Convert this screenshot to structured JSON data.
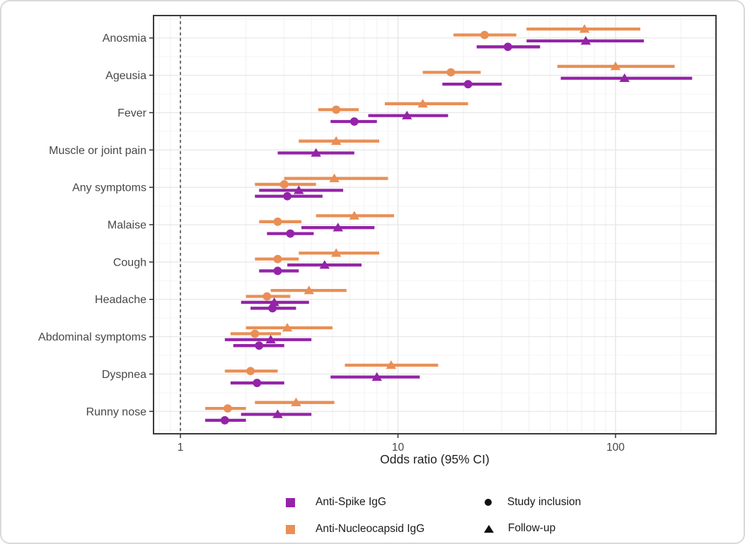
{
  "chart_data": {
    "type": "scatter",
    "subtype": "forest-plot",
    "title": "",
    "xlabel": "Odds ratio (95% CI)",
    "ylabel": "",
    "x_scale": "log10",
    "x_ticks": [
      1,
      10,
      100
    ],
    "xlim": [
      0.75,
      290
    ],
    "reference_line": 1,
    "grid": true,
    "legend_position": "bottom",
    "categories": [
      "Anosmia",
      "Ageusia",
      "Fever",
      "Muscle or joint pain",
      "Any symptoms",
      "Malaise",
      "Cough",
      "Headache",
      "Abdominal symptoms",
      "Dyspnea",
      "Runny nose"
    ],
    "colors": {
      "anti_spike": "#9423A8",
      "anti_nucleocapsid": "#E98F55"
    },
    "series": [
      {
        "name": "Anti-Nucleocapsid IgG / Follow-up",
        "color_key": "anti_nucleocapsid",
        "marker": "triangle",
        "slot": 0,
        "values": [
          [
            72,
            39,
            130
          ],
          [
            100,
            54,
            187
          ],
          [
            13,
            8.7,
            21
          ],
          [
            5.2,
            3.5,
            8.2
          ],
          [
            5.1,
            3.0,
            9.0
          ],
          [
            6.3,
            4.2,
            9.6
          ],
          [
            5.2,
            3.5,
            8.2
          ],
          [
            3.9,
            2.6,
            5.8
          ],
          [
            3.1,
            2.0,
            5.0
          ],
          [
            9.3,
            5.7,
            15.3
          ],
          [
            3.4,
            2.2,
            5.1
          ]
        ]
      },
      {
        "name": "Anti-Nucleocapsid IgG / Study inclusion",
        "color_key": "anti_nucleocapsid",
        "marker": "circle",
        "slot": 1,
        "values": [
          [
            25,
            18,
            35
          ],
          [
            17.5,
            13,
            24
          ],
          [
            5.2,
            4.3,
            6.6
          ],
          null,
          [
            3.0,
            2.2,
            4.2
          ],
          [
            2.8,
            2.3,
            3.6
          ],
          [
            2.8,
            2.2,
            3.5
          ],
          [
            2.5,
            2.0,
            3.2
          ],
          [
            2.2,
            1.7,
            2.9
          ],
          [
            2.1,
            1.6,
            2.8
          ],
          [
            1.65,
            1.3,
            2.0
          ]
        ]
      },
      {
        "name": "Anti-Spike IgG / Follow-up",
        "color_key": "anti_spike",
        "marker": "triangle",
        "slot": 2,
        "values": [
          [
            73,
            39,
            135
          ],
          [
            110,
            56,
            225
          ],
          [
            11,
            7.3,
            17
          ],
          [
            4.2,
            2.8,
            6.3
          ],
          [
            3.5,
            2.3,
            5.6
          ],
          [
            5.3,
            3.6,
            7.8
          ],
          [
            4.6,
            3.1,
            6.8
          ],
          [
            2.7,
            1.9,
            3.9
          ],
          [
            2.6,
            1.6,
            4.0
          ],
          [
            8.0,
            4.9,
            12.6
          ],
          [
            2.8,
            1.9,
            4.0
          ]
        ]
      },
      {
        "name": "Anti-Spike IgG / Study inclusion",
        "color_key": "anti_spike",
        "marker": "circle",
        "slot": 3,
        "values": [
          [
            32,
            23,
            45
          ],
          [
            21,
            16,
            30
          ],
          [
            6.3,
            4.9,
            8.0
          ],
          null,
          [
            3.1,
            2.2,
            4.5
          ],
          [
            3.2,
            2.5,
            4.1
          ],
          [
            2.8,
            2.3,
            3.5
          ],
          [
            2.65,
            2.1,
            3.4
          ],
          [
            2.3,
            1.75,
            3.0
          ],
          [
            2.25,
            1.7,
            3.0
          ],
          [
            1.6,
            1.3,
            2.0
          ]
        ]
      }
    ],
    "legend": {
      "color_items": [
        {
          "label": "Anti-Spike IgG",
          "color_key": "anti_spike"
        },
        {
          "label": "Anti-Nucleocapsid IgG",
          "color_key": "anti_nucleocapsid"
        }
      ],
      "shape_items": [
        {
          "label": "Study inclusion",
          "shape": "circle"
        },
        {
          "label": "Follow-up",
          "shape": "triangle"
        }
      ]
    }
  }
}
